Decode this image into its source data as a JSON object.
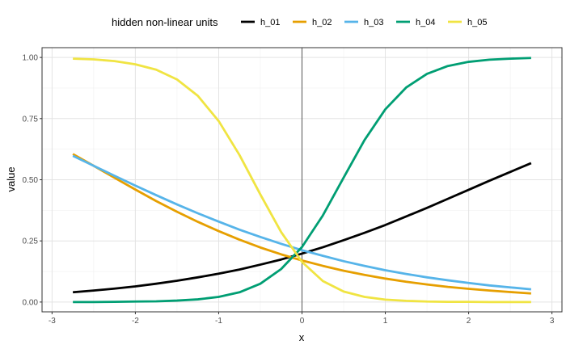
{
  "chart_data": {
    "type": "line",
    "xlabel": "x",
    "ylabel": "value",
    "xlim": [
      -3,
      3
    ],
    "ylim": [
      0,
      1
    ],
    "x_ticks": [
      -3,
      -2,
      -1,
      0,
      1,
      2,
      3
    ],
    "x_tick_labels": [
      "-3",
      "-2",
      "-1",
      "0",
      "1",
      "2",
      "3"
    ],
    "y_ticks": [
      0,
      0.25,
      0.5,
      0.75,
      1.0
    ],
    "y_tick_labels": [
      "0.00",
      "0.25",
      "0.50",
      "0.75",
      "1.00"
    ],
    "grid": true,
    "vline_x": 0,
    "legend": {
      "title": "hidden non-linear units",
      "position": "top"
    },
    "x": [
      -2.75,
      -2.5,
      -2.25,
      -2.0,
      -1.75,
      -1.5,
      -1.25,
      -1.0,
      -0.75,
      -0.5,
      -0.25,
      0.0,
      0.25,
      0.5,
      0.75,
      1.0,
      1.25,
      1.5,
      1.75,
      2.0,
      2.25,
      2.5,
      2.75
    ],
    "series": [
      {
        "name": "h_01",
        "color": "#000000",
        "values": [
          0.04,
          0.047,
          0.055,
          0.064,
          0.075,
          0.087,
          0.101,
          0.116,
          0.133,
          0.153,
          0.174,
          0.198,
          0.224,
          0.253,
          0.283,
          0.315,
          0.35,
          0.385,
          0.422,
          0.459,
          0.496,
          0.532,
          0.568
        ]
      },
      {
        "name": "h_02",
        "color": "#E69F00",
        "values": [
          0.605,
          0.557,
          0.508,
          0.46,
          0.413,
          0.369,
          0.328,
          0.29,
          0.255,
          0.223,
          0.195,
          0.17,
          0.148,
          0.128,
          0.111,
          0.096,
          0.083,
          0.072,
          0.062,
          0.054,
          0.047,
          0.041,
          0.035
        ]
      },
      {
        "name": "h_03",
        "color": "#56B4E9",
        "values": [
          0.598,
          0.557,
          0.516,
          0.476,
          0.437,
          0.399,
          0.363,
          0.329,
          0.296,
          0.266,
          0.238,
          0.212,
          0.189,
          0.167,
          0.148,
          0.13,
          0.115,
          0.101,
          0.089,
          0.078,
          0.068,
          0.06,
          0.052
        ]
      },
      {
        "name": "h_04",
        "color": "#009E73",
        "values": [
          0.0,
          0.0,
          0.001,
          0.002,
          0.003,
          0.006,
          0.011,
          0.021,
          0.04,
          0.075,
          0.135,
          0.225,
          0.354,
          0.509,
          0.662,
          0.788,
          0.877,
          0.933,
          0.965,
          0.982,
          0.991,
          0.995,
          0.998
        ]
      },
      {
        "name": "h_05",
        "color": "#F0E442",
        "values": [
          0.995,
          0.992,
          0.985,
          0.972,
          0.95,
          0.91,
          0.843,
          0.74,
          0.601,
          0.44,
          0.286,
          0.164,
          0.086,
          0.043,
          0.021,
          0.01,
          0.005,
          0.002,
          0.001,
          0.001,
          0.0,
          0.0,
          0.0
        ]
      }
    ]
  }
}
